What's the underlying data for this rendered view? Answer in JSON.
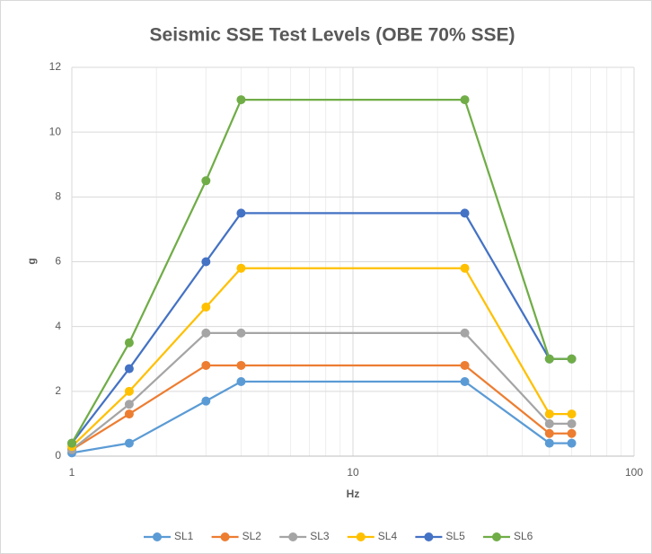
{
  "chart_data": {
    "type": "line",
    "title": "Seismic SSE Test Levels (OBE 70% SSE)",
    "x_label": "Hz",
    "y_label": "g",
    "x": [
      1,
      1.6,
      3,
      4,
      25,
      50,
      60
    ],
    "xscale": "log",
    "xlim": [
      1,
      100
    ],
    "xticks": [
      1,
      10,
      100
    ],
    "x_minor_ticks": [
      2,
      3,
      4,
      5,
      6,
      7,
      8,
      9,
      20,
      30,
      40,
      50,
      60,
      70,
      80,
      90
    ],
    "ylim": [
      0,
      12
    ],
    "yticks": [
      0,
      2,
      4,
      6,
      8,
      10,
      12
    ],
    "grid": true,
    "legend": "bottom",
    "series": [
      {
        "name": "SL1",
        "color": "#5b9bd5",
        "values": [
          0.1,
          0.4,
          1.7,
          2.3,
          2.3,
          0.4,
          0.4
        ]
      },
      {
        "name": "SL2",
        "color": "#ed7d31",
        "values": [
          0.2,
          1.3,
          2.8,
          2.8,
          2.8,
          0.7,
          0.7
        ]
      },
      {
        "name": "SL3",
        "color": "#a5a5a5",
        "values": [
          0.2,
          1.6,
          3.8,
          3.8,
          3.8,
          1.0,
          1.0
        ]
      },
      {
        "name": "SL4",
        "color": "#ffc000",
        "values": [
          0.3,
          2.0,
          4.6,
          5.8,
          5.8,
          1.3,
          1.3
        ]
      },
      {
        "name": "SL5",
        "color": "#4472c4",
        "values": [
          0.4,
          2.7,
          6.0,
          7.5,
          7.5,
          3.0,
          3.0
        ]
      },
      {
        "name": "SL6",
        "color": "#70ad47",
        "values": [
          0.4,
          3.5,
          8.5,
          11,
          11,
          3.0,
          3.0
        ]
      }
    ]
  }
}
